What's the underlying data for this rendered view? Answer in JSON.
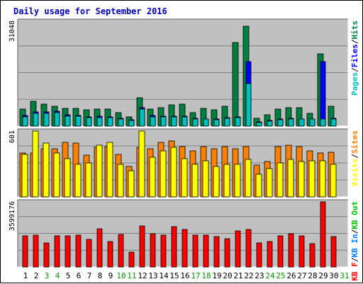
{
  "chart_data": {
    "type": "bar",
    "title": "Daily usage for September 2016",
    "days": [
      "1",
      "2",
      "3",
      "4",
      "5",
      "6",
      "7",
      "8",
      "9",
      "10",
      "11",
      "12",
      "13",
      "14",
      "15",
      "16",
      "17",
      "18",
      "19",
      "20",
      "21",
      "22",
      "23",
      "24",
      "25",
      "26",
      "27",
      "28",
      "29",
      "30",
      "31"
    ],
    "weekend_days": [
      "3",
      "4",
      "10",
      "11",
      "17",
      "18",
      "24",
      "25",
      "31"
    ],
    "panels": [
      {
        "name": "hits",
        "scale_label": "31048",
        "scale_max": 31048,
        "legend": [
          {
            "text": "Pages",
            "color": "#00c0c0"
          },
          {
            "text": "/",
            "color": "#000000"
          },
          {
            "text": "Files",
            "color": "#0000ff"
          },
          {
            "text": "/",
            "color": "#000000"
          },
          {
            "text": "Hits",
            "color": "#008040"
          }
        ],
        "series": [
          {
            "name": "Hits",
            "color": "#008040",
            "values": [
              5100,
              7400,
              6600,
              5900,
              5200,
              5300,
              4900,
              5100,
              5100,
              3900,
              2800,
              8300,
              5100,
              5400,
              6300,
              6500,
              4000,
              5200,
              4900,
              5800,
              24800,
              29600,
              2300,
              3400,
              5000,
              5400,
              5400,
              3700,
              21400,
              5800,
              0
            ]
          },
          {
            "name": "Files",
            "color": "#0000ff",
            "values": [
              3100,
              4200,
              4100,
              4400,
              3300,
              3200,
              2800,
              2900,
              2800,
              2400,
              1900,
              5400,
              3100,
              3000,
              2900,
              3000,
              2300,
              2100,
              2000,
              2500,
              2800,
              19100,
              1200,
              1600,
              2000,
              2300,
              2200,
              2200,
              19000,
              2400,
              0
            ]
          },
          {
            "name": "Pages",
            "color": "#00c0c0",
            "values": [
              2800,
              3700,
              3800,
              3900,
              2900,
              2900,
              2600,
              2600,
              2500,
              2200,
              1700,
              5000,
              2800,
              2700,
              2700,
              2800,
              2200,
              2000,
              1900,
              2300,
              2600,
              12500,
              1100,
              1500,
              1800,
              2000,
              2000,
              2000,
              2200,
              2000,
              0
            ]
          }
        ]
      },
      {
        "name": "visits",
        "scale_label": "601",
        "scale_max": 601,
        "legend": [
          {
            "text": "Visits",
            "color": "#ffff00"
          },
          {
            "text": "/",
            "color": "#000000"
          },
          {
            "text": "Sites",
            "color": "#ff8000"
          }
        ],
        "series": [
          {
            "name": "Sites",
            "color": "#ff8000",
            "values": [
              400,
              400,
              440,
              440,
              500,
              490,
              380,
              450,
              460,
              390,
              280,
              450,
              440,
              500,
              510,
              460,
              420,
              460,
              440,
              460,
              440,
              460,
              290,
              320,
              460,
              470,
              460,
              420,
              400,
              410,
              0
            ]
          },
          {
            "name": "Visits",
            "color": "#ffff00",
            "values": [
              390,
              600,
              490,
              400,
              350,
              300,
              310,
              470,
              500,
              300,
              240,
              600,
              360,
              420,
              450,
              350,
              300,
              330,
              280,
              300,
              300,
              340,
              210,
              260,
              310,
              340,
              320,
              330,
              330,
              300,
              0
            ]
          }
        ]
      },
      {
        "name": "kbytes",
        "scale_label": "3599176",
        "scale_max": 3599176,
        "legend": [
          {
            "text": "KB F",
            "color": "#ff0000"
          },
          {
            "text": "/",
            "color": "#000000"
          },
          {
            "text": "KB In",
            "color": "#0080ff"
          },
          {
            "text": "/",
            "color": "#000000"
          },
          {
            "text": "KB Out",
            "color": "#00c000"
          }
        ],
        "series": [
          {
            "name": "KB F",
            "color": "#ff0000",
            "values": [
              1720000,
              1780000,
              1320000,
              1720000,
              1720000,
              1780000,
              1520000,
              2100000,
              1420000,
              1800000,
              820000,
              2280000,
              1840000,
              1780000,
              2220000,
              2080000,
              1780000,
              1780000,
              1700000,
              1560000,
              1980000,
              2060000,
              1320000,
              1420000,
              1720000,
              1840000,
              1720000,
              1300000,
              3599176,
              1700000,
              0
            ]
          }
        ]
      }
    ]
  }
}
